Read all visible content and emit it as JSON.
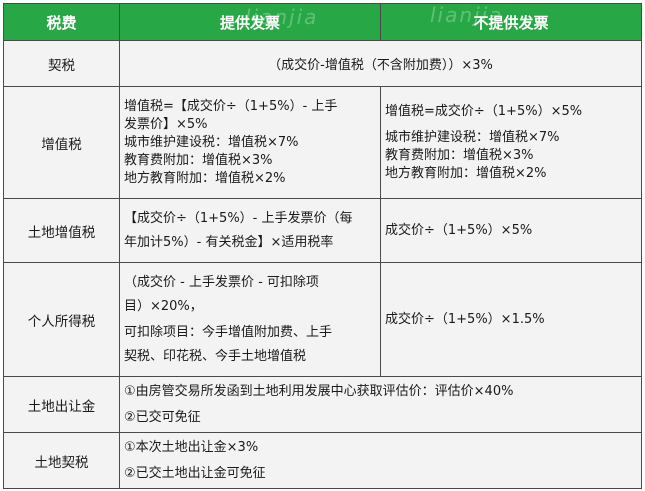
{
  "header": {
    "col1": "税费",
    "col2": "提供发票",
    "col3": "不提供发票",
    "watermark": "lianjia"
  },
  "rows": {
    "qishui": {
      "label": "契税",
      "formula": "（成交价-增值税（不含附加费））×3%"
    },
    "vat": {
      "label": "增值税",
      "with_invoice": [
        "增值税=【成交价÷（1+5%）- 上手",
        "发票价】×5%",
        "城市维护建设税：增值税×7%",
        "教育费附加：增值税×3%",
        "地方教育附加：增值税×2%"
      ],
      "without_invoice": [
        "增值税=成交价÷（1+5%）×5%",
        "城市维护建设税：增值税×7%",
        "教育费附加：增值税×3%",
        "地方教育附加：增值税×2%"
      ]
    },
    "land_vat": {
      "label": "土地增值税",
      "with_invoice": [
        "【成交价÷（1+5%）- 上手发票价（每",
        "年加计5%）- 有关税金】×适用税率"
      ],
      "without_invoice": "成交价÷（1+5%）×5%"
    },
    "income_tax": {
      "label": "个人所得税",
      "with_invoice": [
        "（成交价 - 上手发票价 - 可扣除项",
        "目）×20%，",
        "可扣除项目：今手增值附加费、上手",
        "契税、印花税、今手土地增值税"
      ],
      "without_invoice": "成交价÷（1+5%）×1.5%"
    },
    "land_transfer": {
      "label": "土地出让金",
      "lines": [
        "①由房管交易所发函到土地利用发展中心获取评估价：评估价×40%",
        "②已交可免征"
      ]
    },
    "land_deed": {
      "label": "土地契税",
      "lines": [
        "①本次土地出让金×3%",
        "②已交土地出让金可免征"
      ]
    }
  }
}
